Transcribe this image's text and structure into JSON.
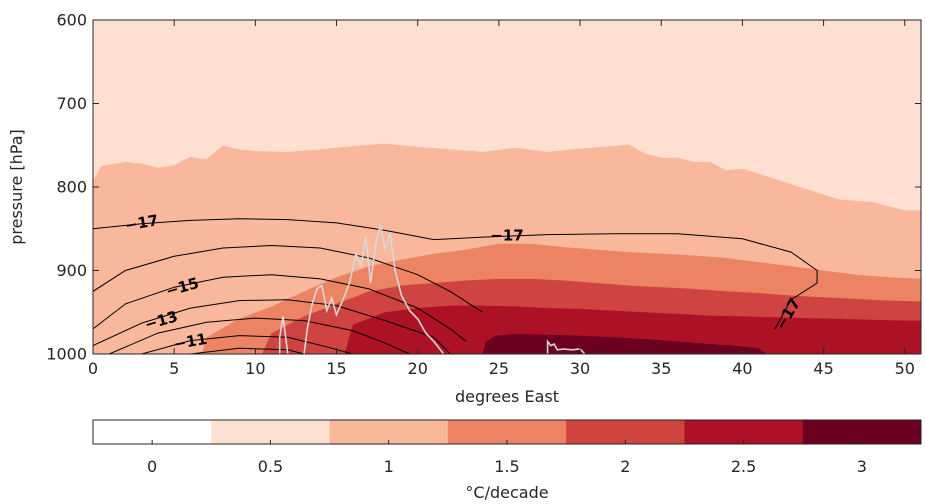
{
  "chart_data": {
    "type": "contour",
    "xlabel": "degrees East",
    "ylabel": "pressure [hPa]",
    "xlim": [
      0,
      51
    ],
    "ylim": [
      1000,
      600
    ],
    "y_reversed": true,
    "x_ticks": [
      0,
      5,
      10,
      15,
      20,
      25,
      30,
      35,
      40,
      45,
      50
    ],
    "y_ticks": [
      600,
      700,
      800,
      900,
      1000
    ],
    "filled_levels": [
      {
        "value": 0.5,
        "color": "#fde0d2"
      },
      {
        "value": 1,
        "color": "#f9b79b"
      },
      {
        "value": 1.5,
        "color": "#ec8464"
      },
      {
        "value": 2,
        "color": "#cf4440"
      },
      {
        "value": 2.5,
        "color": "#ad1126"
      },
      {
        "value": 3,
        "color": "#6b0020"
      }
    ],
    "regions": [
      {
        "level": 1,
        "boundary": [
          [
            0,
            793
          ],
          [
            0.5,
            775
          ],
          [
            2,
            770
          ],
          [
            3,
            772
          ],
          [
            4,
            777
          ],
          [
            5,
            774
          ],
          [
            6,
            764
          ],
          [
            7,
            767
          ],
          [
            8,
            750
          ],
          [
            9,
            755
          ],
          [
            10,
            757
          ],
          [
            12,
            758
          ],
          [
            14,
            755
          ],
          [
            16,
            751
          ],
          [
            18,
            748
          ],
          [
            20,
            752
          ],
          [
            22,
            755
          ],
          [
            24,
            758
          ],
          [
            26,
            753
          ],
          [
            28,
            758
          ],
          [
            30,
            754
          ],
          [
            32,
            751
          ],
          [
            33,
            749
          ],
          [
            34,
            760
          ],
          [
            35,
            765
          ],
          [
            36,
            765
          ],
          [
            37,
            770
          ],
          [
            38,
            770
          ],
          [
            39,
            780
          ],
          [
            40,
            778
          ],
          [
            42,
            790
          ],
          [
            44,
            803
          ],
          [
            46,
            815
          ],
          [
            48,
            818
          ],
          [
            50,
            828
          ],
          [
            51,
            828
          ]
        ]
      },
      {
        "level": 1.5,
        "boundary": [
          [
            6.7,
            1000
          ],
          [
            7,
            980
          ],
          [
            9,
            958
          ],
          [
            11,
            943
          ],
          [
            13,
            925
          ],
          [
            15,
            908
          ],
          [
            17,
            895
          ],
          [
            19,
            887
          ],
          [
            21,
            880
          ],
          [
            23,
            875
          ],
          [
            25,
            868
          ],
          [
            27,
            868
          ],
          [
            29,
            872
          ],
          [
            31,
            875
          ],
          [
            33,
            878
          ],
          [
            35,
            880
          ],
          [
            37,
            882
          ],
          [
            39,
            885
          ],
          [
            41,
            890
          ],
          [
            43,
            895
          ],
          [
            45,
            900
          ],
          [
            47,
            905
          ],
          [
            49,
            908
          ],
          [
            51,
            910
          ]
        ]
      },
      {
        "level": 2,
        "boundary": [
          [
            10.4,
            1000
          ],
          [
            11,
            975
          ],
          [
            13,
            955
          ],
          [
            15,
            940
          ],
          [
            17,
            925
          ],
          [
            19,
            918
          ],
          [
            21,
            915
          ],
          [
            23,
            912
          ],
          [
            25,
            910
          ],
          [
            27,
            910
          ],
          [
            29,
            912
          ],
          [
            31,
            915
          ],
          [
            33,
            918
          ],
          [
            35,
            920
          ],
          [
            37,
            922
          ],
          [
            39,
            925
          ],
          [
            41,
            927
          ],
          [
            43,
            930
          ],
          [
            45,
            932
          ],
          [
            47,
            934
          ],
          [
            49,
            936
          ],
          [
            51,
            937
          ]
        ]
      },
      {
        "level": 2.5,
        "boundary": [
          [
            15.5,
            1000
          ],
          [
            16,
            965
          ],
          [
            18,
            950
          ],
          [
            20,
            945
          ],
          [
            22,
            942
          ],
          [
            24,
            942
          ],
          [
            26,
            943
          ],
          [
            28,
            945
          ],
          [
            30,
            946
          ],
          [
            32,
            948
          ],
          [
            34,
            950
          ],
          [
            36,
            952
          ],
          [
            38,
            954
          ],
          [
            40,
            955
          ],
          [
            42,
            956
          ],
          [
            44,
            957
          ],
          [
            46,
            958
          ],
          [
            48,
            959
          ],
          [
            50,
            960
          ],
          [
            51,
            960
          ]
        ]
      },
      {
        "level": 3,
        "boundary": [
          [
            24,
            1000
          ],
          [
            24.2,
            985
          ],
          [
            24.8,
            978
          ],
          [
            26,
            976
          ],
          [
            28,
            977
          ],
          [
            30,
            978
          ],
          [
            32,
            980
          ],
          [
            34,
            982
          ],
          [
            36,
            985
          ],
          [
            38,
            988
          ],
          [
            40,
            991
          ],
          [
            41,
            993
          ],
          [
            41.5,
            1000
          ]
        ]
      }
    ],
    "contours": [
      {
        "level": -17,
        "points": [
          [
            0,
            850
          ],
          [
            3,
            844
          ],
          [
            6,
            840
          ],
          [
            9,
            838
          ],
          [
            12,
            839
          ],
          [
            15,
            843
          ],
          [
            18,
            852
          ],
          [
            21,
            863
          ],
          [
            24,
            860
          ],
          [
            28,
            857
          ],
          [
            32,
            856
          ],
          [
            36,
            856
          ],
          [
            40,
            862
          ],
          [
            43,
            878
          ],
          [
            44.6,
            900
          ],
          [
            44.6,
            915
          ],
          [
            43,
            935
          ],
          [
            42,
            970
          ]
        ]
      },
      {
        "level": -17,
        "points": [
          [
            0,
            925
          ],
          [
            2,
            900
          ],
          [
            5,
            883
          ],
          [
            8,
            873
          ],
          [
            11,
            870
          ],
          [
            14,
            873
          ],
          [
            17,
            885
          ],
          [
            20,
            905
          ],
          [
            22,
            925
          ],
          [
            24,
            950
          ]
        ]
      },
      {
        "level": -15,
        "points": [
          [
            0,
            970
          ],
          [
            2,
            940
          ],
          [
            5,
            920
          ],
          [
            8,
            908
          ],
          [
            11,
            905
          ],
          [
            14,
            910
          ],
          [
            17,
            922
          ],
          [
            20,
            945
          ],
          [
            22,
            970
          ],
          [
            23,
            985
          ]
        ]
      },
      {
        "level": -13,
        "points": [
          [
            0,
            990
          ],
          [
            3,
            963
          ],
          [
            6,
            945
          ],
          [
            9,
            936
          ],
          [
            12,
            935
          ],
          [
            15,
            942
          ],
          [
            18,
            960
          ],
          [
            21,
            980
          ],
          [
            22,
            1000
          ]
        ]
      },
      {
        "level": -13,
        "points": [
          [
            1,
            1000
          ],
          [
            4,
            975
          ],
          [
            7,
            962
          ],
          [
            10,
            957
          ],
          [
            13,
            960
          ],
          [
            16,
            972
          ],
          [
            18,
            987
          ],
          [
            19.5,
            1000
          ]
        ]
      },
      {
        "level": -11,
        "points": [
          [
            3,
            1000
          ],
          [
            6,
            984
          ],
          [
            9,
            978
          ],
          [
            12,
            980
          ],
          [
            14.5,
            992
          ],
          [
            16,
            1000
          ]
        ]
      },
      {
        "level": -11,
        "points": [
          [
            6,
            1000
          ],
          [
            9,
            993
          ],
          [
            12,
            995
          ],
          [
            13,
            1000
          ]
        ]
      }
    ],
    "contour_labels": [
      {
        "text": "−17",
        "x": 3,
        "y": 843,
        "rotate": -10
      },
      {
        "text": "−17",
        "x": 25.5,
        "y": 858,
        "rotate": 0
      },
      {
        "text": "−17",
        "x": 42.8,
        "y": 952,
        "rotate": -60
      },
      {
        "text": "−15",
        "x": 5.5,
        "y": 920,
        "rotate": -16
      },
      {
        "text": "−13",
        "x": 4.2,
        "y": 960,
        "rotate": -16
      },
      {
        "text": "−11",
        "x": 6,
        "y": 985,
        "rotate": -10
      }
    ],
    "topography": [
      {
        "points": [
          [
            11.5,
            1000
          ],
          [
            11.5,
            980
          ],
          [
            11.7,
            955
          ],
          [
            11.9,
            985
          ],
          [
            12,
            1000
          ]
        ]
      },
      {
        "points": [
          [
            13,
            1000
          ],
          [
            13.2,
            970
          ],
          [
            13.5,
            940
          ],
          [
            13.8,
            922
          ],
          [
            14.1,
            918
          ],
          [
            14.4,
            948
          ],
          [
            14.7,
            933
          ],
          [
            15,
            953
          ],
          [
            15.4,
            935
          ],
          [
            15.8,
            915
          ],
          [
            16.2,
            880
          ],
          [
            16.5,
            895
          ],
          [
            16.8,
            860
          ],
          [
            17.1,
            915
          ],
          [
            17.4,
            870
          ],
          [
            17.7,
            845
          ],
          [
            18,
            875
          ],
          [
            18.3,
            855
          ],
          [
            18.6,
            900
          ],
          [
            19,
            930
          ],
          [
            19.5,
            948
          ],
          [
            20,
            958
          ],
          [
            20.5,
            975
          ],
          [
            21,
            985
          ],
          [
            21.6,
            1000
          ]
        ]
      },
      {
        "points": [
          [
            28,
            1000
          ],
          [
            28,
            985
          ],
          [
            28.2,
            990
          ],
          [
            28.4,
            988
          ],
          [
            28.6,
            995
          ],
          [
            29,
            994
          ],
          [
            29.5,
            995
          ],
          [
            30,
            994
          ],
          [
            30.3,
            1000
          ]
        ]
      }
    ],
    "colorbar": {
      "ticks": [
        0,
        0.5,
        1,
        1.5,
        2,
        2.5,
        3
      ],
      "label": "°C/decade",
      "colors": [
        "#ffffff",
        "#fde0d2",
        "#f9b79b",
        "#ec8464",
        "#cf4440",
        "#ad1126",
        "#6b0020"
      ]
    }
  }
}
